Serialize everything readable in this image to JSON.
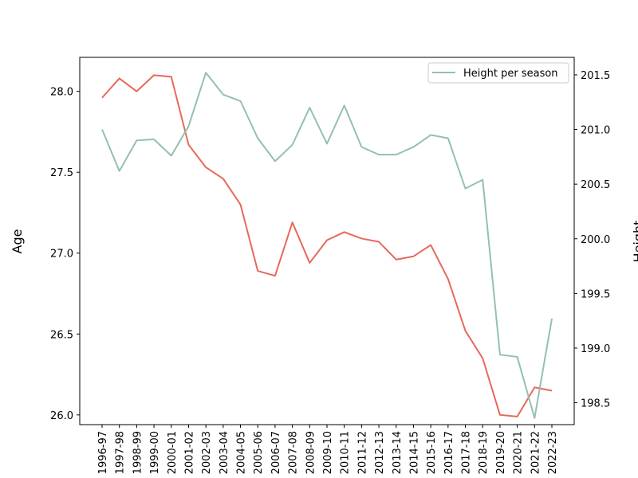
{
  "chart_data": {
    "type": "line",
    "categories": [
      "1996-97",
      "1997-98",
      "1998-99",
      "1999-00",
      "2000-01",
      "2001-02",
      "2002-03",
      "2003-04",
      "2004-05",
      "2005-06",
      "2006-07",
      "2007-08",
      "2008-09",
      "2009-10",
      "2010-11",
      "2011-12",
      "2012-13",
      "2013-14",
      "2014-15",
      "2015-16",
      "2016-17",
      "2017-18",
      "2018-19",
      "2019-20",
      "2020-21",
      "2021-22",
      "2022-23"
    ],
    "series": [
      {
        "name": "",
        "axis": "left",
        "color": "#e8685a",
        "values": [
          27.96,
          28.08,
          28.0,
          28.1,
          28.09,
          27.67,
          27.53,
          27.46,
          27.3,
          26.89,
          26.86,
          27.19,
          26.94,
          27.08,
          27.13,
          27.09,
          27.07,
          26.96,
          26.98,
          27.05,
          26.84,
          26.52,
          26.35,
          26.0,
          25.99,
          26.17,
          26.15
        ]
      },
      {
        "name": "Height per season",
        "axis": "right",
        "color": "#94bfb5",
        "values": [
          201.0,
          200.62,
          200.9,
          200.91,
          200.76,
          201.03,
          201.52,
          201.32,
          201.26,
          200.92,
          200.71,
          200.86,
          201.2,
          200.87,
          201.22,
          200.84,
          200.77,
          200.77,
          200.84,
          200.95,
          200.92,
          200.46,
          200.54,
          198.94,
          198.92,
          198.36,
          199.27
        ]
      }
    ],
    "ylabel": "Age",
    "ylim": [
      25.94,
      28.21
    ],
    "yticks": [
      "26.0",
      "26.5",
      "27.0",
      "27.5",
      "28.0"
    ],
    "y2label": "Height",
    "y2lim": [
      198.3,
      201.66
    ],
    "y2ticks": [
      "198.5",
      "199.0",
      "199.5",
      "200.0",
      "200.5",
      "201.0",
      "201.5"
    ],
    "legend": {
      "placement": "top-right",
      "entries": [
        "Height per season"
      ]
    },
    "grid": false
  }
}
